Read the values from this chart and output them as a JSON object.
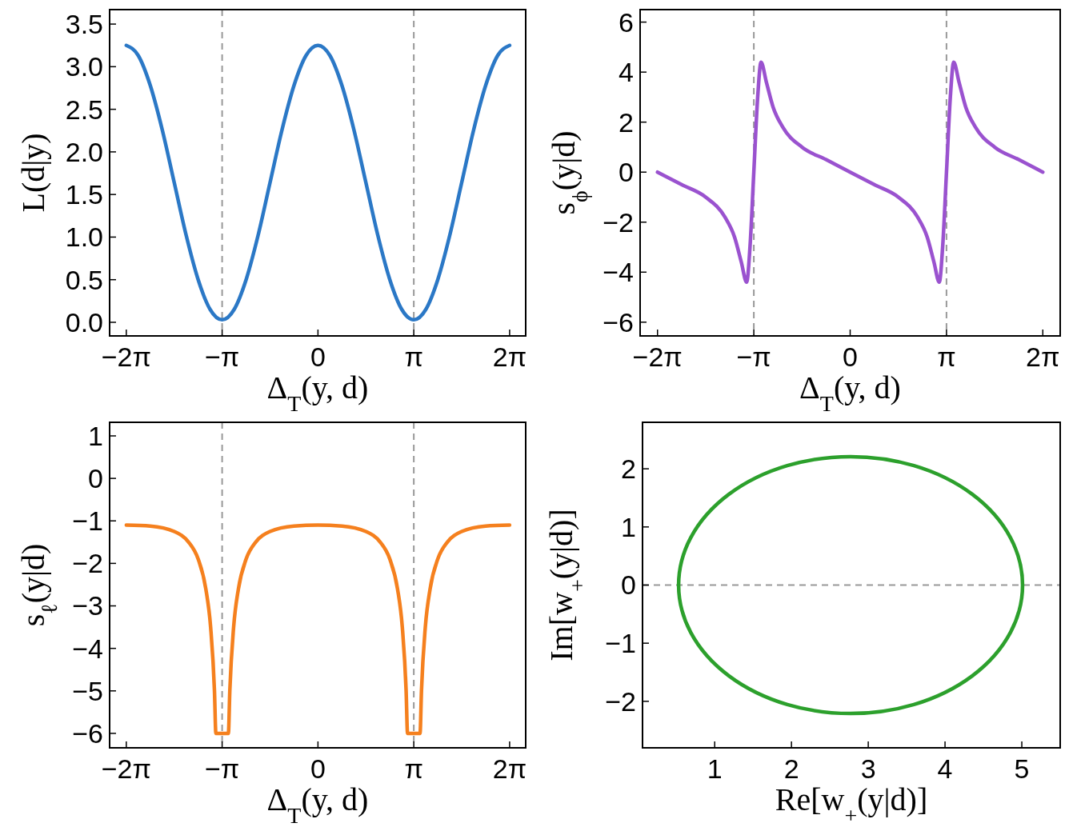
{
  "chart_data": [
    {
      "type": "line",
      "xlabel": "Δ$_{T}$(y, d)",
      "ylabel": "L(d|y)",
      "xlim": [
        -6.83,
        6.81
      ],
      "ylim": [
        -0.16,
        3.67
      ],
      "xticks": [
        {
          "value": -6.2832,
          "label": "−2π"
        },
        {
          "value": -3.1416,
          "label": "−π"
        },
        {
          "value": 0,
          "label": "0"
        },
        {
          "value": 3.1416,
          "label": "π"
        },
        {
          "value": 6.2832,
          "label": "2π"
        }
      ],
      "yticks": [
        {
          "value": 0,
          "label": "0.0"
        },
        {
          "value": 0.5,
          "label": "0.5"
        },
        {
          "value": 1,
          "label": "1.0"
        },
        {
          "value": 1.5,
          "label": "1.5"
        },
        {
          "value": 2,
          "label": "2.0"
        },
        {
          "value": 2.5,
          "label": "2.5"
        },
        {
          "value": 3,
          "label": "3.0"
        },
        {
          "value": 3.5,
          "label": "3.5"
        }
      ],
      "grid": false,
      "ref_lines": [
        {
          "axis": "x",
          "value": -3.1416,
          "color": "#999999",
          "line_style": "dashed"
        },
        {
          "axis": "x",
          "value": 3.1416,
          "color": "#999999",
          "line_style": "dashed"
        }
      ],
      "series": [
        {
          "color": "#2b78c6",
          "x": [
            -6.283,
            -5.89,
            -5.498,
            -5.105,
            -4.712,
            -4.32,
            -3.927,
            -3.534,
            -3.142,
            -2.749,
            -2.356,
            -1.963,
            -1.571,
            -1.178,
            -0.785,
            -0.393,
            0,
            0.393,
            0.785,
            1.178,
            1.571,
            1.963,
            2.356,
            2.749,
            3.142,
            3.534,
            3.927,
            4.32,
            4.712,
            5.105,
            5.498,
            5.89,
            6.283
          ],
          "values": [
            3.25,
            3.13,
            2.78,
            2.26,
            1.64,
            1.02,
            0.5,
            0.15,
            0.03,
            0.15,
            0.5,
            1.02,
            1.64,
            2.26,
            2.78,
            3.13,
            3.25,
            3.13,
            2.78,
            2.26,
            1.64,
            1.02,
            0.5,
            0.15,
            0.03,
            0.15,
            0.5,
            1.02,
            1.64,
            2.26,
            2.78,
            3.13,
            3.25
          ]
        }
      ]
    },
    {
      "type": "line",
      "xlabel": "Δ$_{T}$(y, d)",
      "ylabel": "s$_{ϕ}$(y|d)",
      "xlim": [
        -6.85,
        6.85
      ],
      "ylim": [
        -6.55,
        6.5
      ],
      "xticks": [
        {
          "value": -6.2832,
          "label": "−2π"
        },
        {
          "value": -3.1416,
          "label": "−π"
        },
        {
          "value": 0,
          "label": "0"
        },
        {
          "value": 3.1416,
          "label": "π"
        },
        {
          "value": 6.2832,
          "label": "2π"
        }
      ],
      "yticks": [
        {
          "value": -6,
          "label": "−6"
        },
        {
          "value": -4,
          "label": "−4"
        },
        {
          "value": -2,
          "label": "−2"
        },
        0,
        2,
        4,
        6
      ],
      "grid": false,
      "ref_lines": [
        {
          "axis": "x",
          "value": -3.1416,
          "color": "#999999",
          "line_style": "dashed"
        },
        {
          "axis": "x",
          "value": 3.1416,
          "color": "#999999",
          "line_style": "dashed"
        }
      ],
      "series": [
        {
          "color": "#9a52cf",
          "x": [
            -6.283,
            -5.498,
            -4.712,
            -4.084,
            -3.77,
            -3.55,
            -3.377,
            -3.267,
            -3.142,
            -3.016,
            -2.906,
            -2.733,
            -2.513,
            -2.199,
            -1.571,
            -0.785,
            0,
            0.785,
            1.571,
            2.199,
            2.513,
            2.733,
            2.906,
            3.016,
            3.142,
            3.267,
            3.377,
            3.55,
            3.77,
            4.084,
            4.712,
            5.498,
            6.283
          ],
          "values": [
            0,
            -0.5,
            -1.0,
            -1.8,
            -2.6,
            -3.6,
            -4.4,
            -3.0,
            0,
            3.0,
            4.4,
            3.6,
            2.6,
            1.8,
            1.0,
            0.5,
            0,
            -0.5,
            -1.0,
            -1.8,
            -2.6,
            -3.6,
            -4.4,
            -3.0,
            0,
            3.0,
            4.4,
            3.6,
            2.6,
            1.8,
            1.0,
            0.5,
            0
          ]
        }
      ]
    },
    {
      "type": "line",
      "xlabel": "Δ$_{T}$(y, d)",
      "ylabel": "s$_{ℓ}$(y|d)",
      "xlim": [
        -6.83,
        6.81
      ],
      "ylim": [
        -6.34,
        1.32
      ],
      "xticks": [
        {
          "value": -6.2832,
          "label": "−2π"
        },
        {
          "value": -3.1416,
          "label": "−π"
        },
        {
          "value": 0,
          "label": "0"
        },
        {
          "value": 3.1416,
          "label": "π"
        },
        {
          "value": 6.2832,
          "label": "2π"
        }
      ],
      "yticks": [
        {
          "value": -6,
          "label": "−6"
        },
        {
          "value": -5,
          "label": "−5"
        },
        {
          "value": -4,
          "label": "−4"
        },
        {
          "value": -3,
          "label": "−3"
        },
        {
          "value": -2,
          "label": "−2"
        },
        {
          "value": -1,
          "label": "−1"
        },
        0,
        1
      ],
      "grid": false,
      "ref_lines": [
        {
          "axis": "x",
          "value": -3.1416,
          "color": "#999999",
          "line_style": "dashed"
        },
        {
          "axis": "x",
          "value": 3.1416,
          "color": "#999999",
          "line_style": "dashed"
        }
      ],
      "series": [
        {
          "color": "#f5801e",
          "x": [
            -6.283,
            -5.498,
            -4.712,
            -4.241,
            -3.927,
            -3.676,
            -3.519,
            -3.393,
            -3.346,
            -2.937,
            -2.89,
            -2.765,
            -2.608,
            -2.356,
            -2.042,
            -1.571,
            -0.785,
            0,
            0.785,
            1.571,
            2.042,
            2.356,
            2.608,
            2.765,
            2.89,
            2.937,
            3.346,
            3.393,
            3.519,
            3.676,
            3.927,
            4.241,
            4.712,
            5.498,
            6.283
          ],
          "values": [
            -1.1,
            -1.12,
            -1.25,
            -1.5,
            -1.9,
            -2.6,
            -3.5,
            -5.0,
            -6,
            -6,
            -5.0,
            -3.5,
            -2.6,
            -1.9,
            -1.5,
            -1.25,
            -1.12,
            -1.1,
            -1.12,
            -1.25,
            -1.5,
            -1.9,
            -2.6,
            -3.5,
            -5.0,
            -6,
            -6,
            -5.0,
            -3.5,
            -2.6,
            -1.9,
            -1.5,
            -1.25,
            -1.12,
            -1.1
          ]
        }
      ]
    },
    {
      "type": "line",
      "xlabel": "Re[w$_{+}$(y|d)]",
      "ylabel": "Im[w$_{+}$(y|d)]",
      "xlim": [
        0.06,
        5.5
      ],
      "ylim": [
        -2.8,
        2.8
      ],
      "xticks": [
        1,
        2,
        3,
        4,
        5
      ],
      "yticks": [
        {
          "value": -2,
          "label": "−2"
        },
        {
          "value": -1,
          "label": "−1"
        },
        0,
        1,
        2
      ],
      "grid": false,
      "ref_lines": [
        {
          "axis": "y",
          "value": 0,
          "color": "#999999",
          "line_style": "dashed"
        }
      ]
    }
  ]
}
